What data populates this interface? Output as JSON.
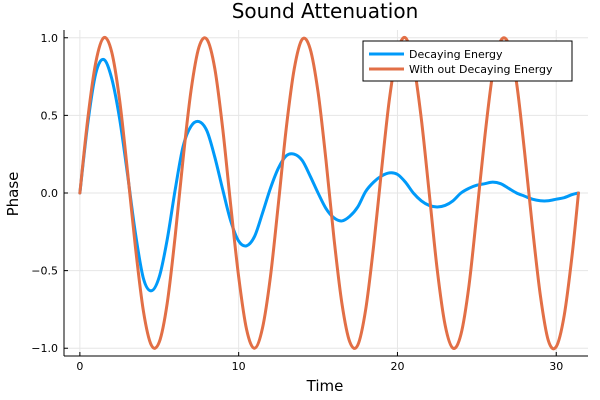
{
  "chart_data": {
    "type": "line",
    "title": "Sound Attenuation",
    "xlabel": "Time",
    "ylabel": "Phase",
    "xlim": [
      -1,
      32
    ],
    "ylim": [
      -1.05,
      1.05
    ],
    "xticks": [
      0,
      10,
      20,
      30
    ],
    "xtick_labels": [
      "0",
      "10",
      "20",
      "30"
    ],
    "yticks": [
      -1.0,
      -0.5,
      0.0,
      0.5,
      1.0
    ],
    "ytick_labels": [
      "−1.0",
      "−0.5",
      "0.0",
      "0.5",
      "1.0"
    ],
    "grid": true,
    "legend_position": "top-right",
    "x": [
      0,
      0.5,
      1.0,
      1.5,
      2.0,
      2.5,
      3.0,
      3.5,
      4.0,
      4.5,
      5.0,
      5.5,
      6.0,
      6.5,
      7.0,
      7.5,
      8.0,
      8.5,
      9.0,
      9.5,
      10.0,
      10.5,
      11.0,
      11.5,
      12.0,
      12.5,
      13.0,
      13.5,
      14.0,
      14.5,
      15.0,
      15.5,
      16.0,
      16.5,
      17.0,
      17.5,
      18.0,
      18.5,
      19.0,
      19.5,
      20.0,
      20.5,
      21.0,
      21.5,
      22.0,
      22.5,
      23.0,
      23.5,
      24.0,
      24.5,
      25.0,
      25.5,
      26.0,
      26.5,
      27.0,
      27.5,
      28.0,
      28.5,
      29.0,
      29.5,
      30.0,
      30.5,
      31.0,
      31.4
    ],
    "series": [
      {
        "name": "Decaying Energy",
        "color": "#009af9",
        "values": [
          0.0,
          0.45,
          0.77,
          0.86,
          0.74,
          0.48,
          0.12,
          -0.26,
          -0.55,
          -0.63,
          -0.54,
          -0.3,
          0.02,
          0.3,
          0.43,
          0.46,
          0.4,
          0.23,
          0.02,
          -0.18,
          -0.31,
          -0.34,
          -0.28,
          -0.13,
          0.03,
          0.16,
          0.24,
          0.25,
          0.21,
          0.11,
          0.0,
          -0.1,
          -0.16,
          -0.18,
          -0.15,
          -0.09,
          0.01,
          0.07,
          0.11,
          0.13,
          0.12,
          0.07,
          0.0,
          -0.05,
          -0.08,
          -0.09,
          -0.08,
          -0.05,
          0.0,
          0.03,
          0.05,
          0.06,
          0.07,
          0.06,
          0.03,
          0.0,
          -0.02,
          -0.04,
          -0.05,
          -0.05,
          -0.04,
          -0.03,
          -0.01,
          0.0
        ]
      },
      {
        "name": "With out Decaying Energy",
        "color": "#e26f46",
        "values": [
          0.0,
          0.48,
          0.84,
          1.0,
          0.91,
          0.6,
          0.14,
          -0.35,
          -0.76,
          -0.98,
          -0.96,
          -0.71,
          -0.28,
          0.22,
          0.66,
          0.94,
          0.99,
          0.8,
          0.41,
          -0.08,
          -0.54,
          -0.88,
          -1.0,
          -0.87,
          -0.54,
          -0.07,
          0.42,
          0.8,
          0.99,
          0.93,
          0.65,
          0.21,
          -0.29,
          -0.71,
          -0.96,
          -0.98,
          -0.75,
          -0.34,
          0.15,
          0.61,
          0.91,
          1.0,
          0.84,
          0.48,
          0.0,
          -0.49,
          -0.85,
          -1.0,
          -0.91,
          -0.6,
          -0.13,
          0.36,
          0.77,
          0.98,
          0.96,
          0.71,
          0.27,
          -0.22,
          -0.66,
          -0.95,
          -0.99,
          -0.79,
          -0.4,
          0.0
        ]
      }
    ]
  }
}
